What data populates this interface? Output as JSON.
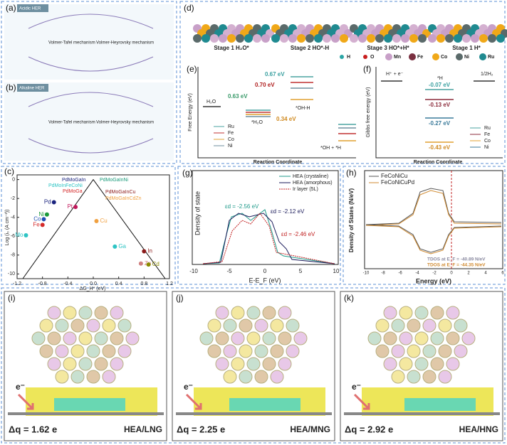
{
  "a": {
    "label": "(a)",
    "tag": "Acidic HER",
    "left": "Volmer-Tafel mechanism",
    "right": "Volmer-Heyrovsky mechanism"
  },
  "b": {
    "label": "(b)",
    "tag": "Alkaline HER",
    "left": "Volmer-Tafel mechanism",
    "right": "Volmer-Heyrovsky mechanism"
  },
  "d": {
    "label": "(d)",
    "stages": [
      "Stage 1  H₂O*",
      "Stage 2  HO*-H",
      "Stage 3  HO*+H*",
      "Stage 1  H*"
    ],
    "legend": [
      "H",
      "O",
      "Mn",
      "Fe",
      "Co",
      "Ni",
      "Ru"
    ]
  },
  "e": {
    "label": "(e)",
    "y_label": "Free Energy (eV)",
    "x_label": "Reaction Coordinate",
    "states": [
      "H₂O",
      "*H₂O",
      "*OH-H",
      "*OH + *H"
    ],
    "energies": [
      "0.67 eV",
      "0.70 eV",
      "0.63 eV",
      "0.34 eV"
    ],
    "legend": [
      "Ru",
      "Fe",
      "Co",
      "Ni"
    ]
  },
  "f": {
    "label": "(f)",
    "y_label": "Gibbs free energy (eV)",
    "x_label": "Reaction Coordinate",
    "states": [
      "H⁺ + e⁻",
      "*H",
      "1/2H₂"
    ],
    "energies": [
      "-0.07 eV",
      "-0.13 eV",
      "-0.27 eV",
      "-0.43 eV"
    ],
    "legend": [
      "Ru",
      "Fe",
      "Co",
      "Ni"
    ]
  },
  "c": {
    "label": "(c)",
    "x_label": "ΔG_H* (eV)",
    "y_label": "Log (i₀ (A cm⁻²))",
    "xlim": [
      -1.2,
      1.2
    ],
    "ylim": [
      -10.5,
      0.5
    ],
    "xticks": [
      -1.2,
      -0.8,
      -0.4,
      {
        "value": 0,
        "label": "0.0"
      },
      0.4,
      0.8,
      1.2
    ],
    "yticks": [
      0,
      -2,
      -4,
      -6,
      -8,
      -10
    ],
    "points": [
      {
        "name": "Mo",
        "x": -1.06,
        "y": -5.9,
        "color": "#2ec4c4"
      },
      {
        "name": "Fe",
        "x": -0.8,
        "y": -4.8,
        "color": "#d42a2a"
      },
      {
        "name": "Co",
        "x": -0.78,
        "y": -4.2,
        "color": "#1f4fb5"
      },
      {
        "name": "Ni",
        "x": -0.73,
        "y": -3.7,
        "color": "#1a9a3a"
      },
      {
        "name": "Pd",
        "x": -0.62,
        "y": -2.4,
        "color": "#1a237e"
      },
      {
        "name": "Pt",
        "x": -0.28,
        "y": -2.9,
        "color": "#c2185b"
      },
      {
        "name": "Cu",
        "x": 0.05,
        "y": -4.4,
        "color": "#f0a040"
      },
      {
        "name": "Ga",
        "x": 0.34,
        "y": -7.1,
        "color": "#2ec4c4"
      },
      {
        "name": "In",
        "x": 0.8,
        "y": -7.6,
        "color": "#8b1a1a"
      },
      {
        "name": "Zn",
        "x": 0.75,
        "y": -8.9,
        "color": "#d08080"
      },
      {
        "name": "Cd",
        "x": 0.87,
        "y": -9.0,
        "color": "#8a8a00"
      }
    ],
    "alloys": [
      "PdMoGaIn",
      "PdMoGaInNi",
      "PdMoInFeCoNi",
      "PdMoGa",
      "PdMoGaInCu",
      "PdMoGaInCdZn"
    ]
  },
  "g": {
    "label": "(g)",
    "y_label": "Density of state",
    "x_label": "E-E_F (eV)",
    "xticks": [
      "-10",
      "-5",
      "0",
      "5",
      "10"
    ],
    "legend": [
      "HEA (crystaline)",
      "HEA (amorphous)",
      "Ir layer (5L)"
    ],
    "annotations": [
      "εd = -2.56 eV",
      "εd = -2.12 eV",
      "εd = -2.46 eV"
    ]
  },
  "h": {
    "label": "(h)",
    "y_label": "Density of States (N/eV)",
    "x_label": "Energy (eV)",
    "xticks": [
      "-10",
      "-8",
      "-6",
      "-4",
      "-2",
      "0",
      "2",
      "4",
      "6"
    ],
    "legend": [
      "FeCoNiCu",
      "FeCoNiCuPd"
    ],
    "annotations": [
      "TDOS at E_F = -40.89 N/eV",
      "TDOS at E_F = -44.35 N/eV"
    ]
  },
  "i": {
    "label": "(i)",
    "electron": "e⁻",
    "dq": "Δq = 1.62 e",
    "name": "HEA/LNG"
  },
  "j": {
    "label": "(j)",
    "electron": "e⁻",
    "dq": "Δq = 2.25 e",
    "name": "HEA/MNG"
  },
  "k": {
    "label": "(k)",
    "electron": "e⁻",
    "dq": "Δq = 2.92 e",
    "name": "HEA/HNG"
  }
}
